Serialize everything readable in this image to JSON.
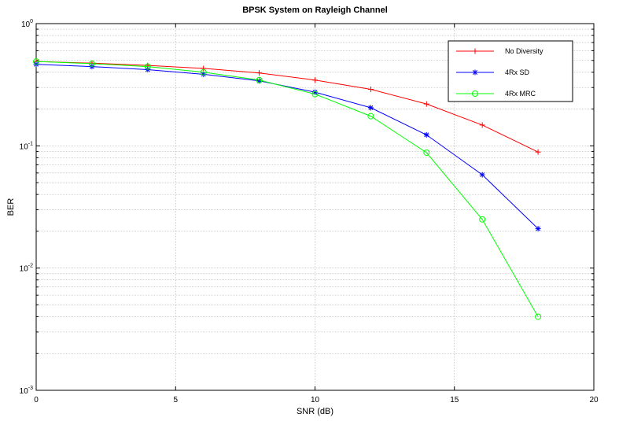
{
  "chart_data": {
    "type": "line",
    "title": "BPSK System on Rayleigh Channel",
    "xlabel": "SNR (dB)",
    "ylabel": "BER",
    "xlim": [
      0,
      20
    ],
    "ylim": [
      0.001,
      1
    ],
    "yscale": "log",
    "grid": true,
    "legend_position": "top-right",
    "x_ticks": [
      "0",
      "5",
      "10",
      "15",
      "20"
    ],
    "y_ticks": [
      {
        "base": "10",
        "exp": "0"
      },
      {
        "base": "10",
        "exp": "-1"
      },
      {
        "base": "10",
        "exp": "-2"
      },
      {
        "base": "10",
        "exp": "-3"
      }
    ],
    "x": [
      0,
      2,
      4,
      6,
      8,
      10,
      12,
      14,
      16,
      18
    ],
    "series": [
      {
        "name": "No Diversity",
        "color": "#ff0000",
        "marker": "plus",
        "values": [
          0.49,
          0.475,
          0.455,
          0.43,
          0.395,
          0.345,
          0.29,
          0.22,
          0.148,
          0.089
        ]
      },
      {
        "name": "4Rx SD",
        "color": "#0000ff",
        "marker": "asterisk",
        "values": [
          0.465,
          0.445,
          0.42,
          0.385,
          0.34,
          0.275,
          0.205,
          0.123,
          0.058,
          0.021
        ]
      },
      {
        "name": "4Rx MRC",
        "color": "#00ff00",
        "marker": "circle",
        "values": [
          0.49,
          0.47,
          0.445,
          0.4,
          0.345,
          0.265,
          0.175,
          0.088,
          0.025,
          0.004
        ]
      }
    ]
  }
}
